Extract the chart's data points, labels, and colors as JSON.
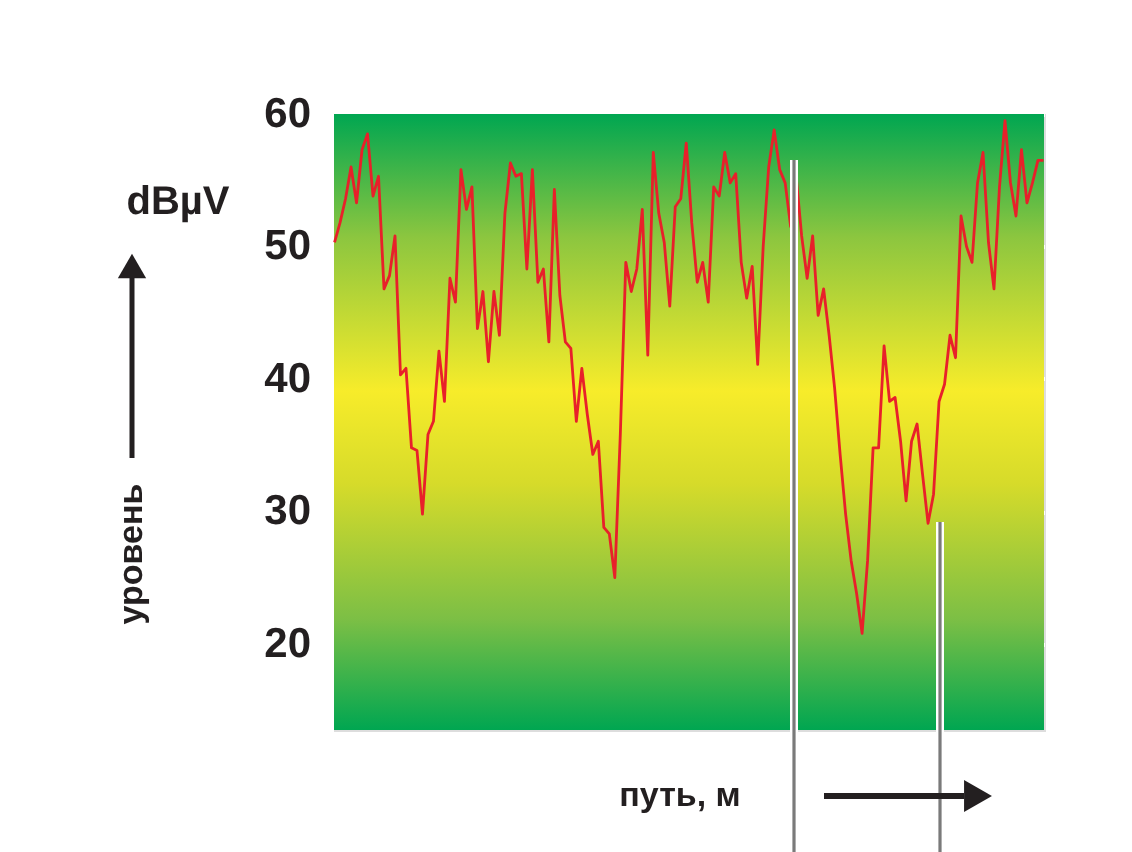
{
  "chart_data": {
    "type": "line",
    "xlabel": "путь, м",
    "ylabel": "уровень",
    "annotations": [
      "dBµV"
    ],
    "categories": [
      null,
      null,
      null,
      null,
      null,
      null,
      null,
      null,
      null,
      null,
      null,
      null,
      null,
      null,
      null,
      null,
      null,
      null,
      null,
      null,
      null,
      null,
      null,
      null,
      null,
      null,
      null,
      null,
      null,
      null,
      null,
      null,
      null,
      null,
      null,
      null,
      null,
      null,
      null,
      null,
      null,
      null,
      null,
      null,
      null,
      null,
      null,
      null,
      null,
      null,
      null,
      null,
      null,
      null,
      null,
      null,
      null,
      null,
      null,
      null,
      null,
      null,
      null,
      null,
      null,
      null,
      null,
      null,
      null,
      null,
      null,
      null,
      null,
      null,
      null,
      null,
      null,
      null,
      null,
      null,
      null,
      null,
      null,
      null,
      null,
      null,
      null,
      null,
      null,
      null,
      null,
      null,
      null,
      null,
      null,
      null,
      null,
      null,
      null,
      null,
      null,
      null,
      null,
      null,
      null,
      null,
      null,
      null,
      null,
      null,
      null,
      null,
      null,
      null,
      null,
      null,
      null,
      null,
      null,
      null,
      null,
      null,
      null,
      null,
      null,
      null,
      null,
      null,
      null,
      null
    ],
    "ylim": [
      13.5,
      60
    ],
    "yticks": [
      20,
      30,
      40,
      50,
      60
    ],
    "grid": "y",
    "tick_labels": "y",
    "marker": "none",
    "line_style": "solid",
    "series": [
      {
        "color": "#e8202a",
        "values": [
          50.3,
          51.8,
          53.6,
          56.0,
          53.3,
          57.3,
          58.5,
          53.8,
          55.3,
          46.8,
          47.8,
          50.8,
          40.3,
          40.8,
          34.8,
          34.6,
          29.8,
          35.8,
          36.8,
          42.1,
          38.3,
          47.6,
          45.8,
          55.8,
          52.8,
          54.5,
          43.8,
          46.6,
          41.3,
          46.6,
          43.3,
          52.5,
          56.3,
          55.3,
          55.5,
          48.3,
          55.8,
          47.3,
          48.3,
          42.8,
          54.3,
          46.3,
          42.8,
          42.3,
          36.8,
          40.8,
          37.3,
          34.3,
          35.3,
          28.8,
          28.3,
          25.0,
          35.8,
          48.8,
          46.6,
          48.3,
          52.8,
          41.8,
          57.1,
          52.5,
          50.3,
          45.5,
          53.0,
          53.6,
          57.8,
          51.8,
          47.3,
          48.8,
          45.8,
          54.5,
          53.8,
          57.1,
          54.8,
          55.5,
          48.8,
          46.1,
          48.5,
          41.1,
          50.0,
          56.0,
          58.8,
          55.8,
          54.8,
          51.5,
          55.3,
          50.8,
          47.6,
          50.8,
          44.8,
          46.8,
          43.3,
          39.3,
          34.3,
          29.8,
          26.3,
          23.8,
          20.8,
          26.3,
          34.8,
          34.8,
          42.5,
          38.3,
          38.6,
          35.3,
          30.8,
          35.3,
          36.6,
          32.8,
          29.1,
          31.3,
          38.3,
          39.6,
          43.3,
          41.6,
          52.3,
          50.0,
          48.8,
          54.8,
          57.1,
          50.3,
          46.8,
          54.5,
          59.5,
          54.8,
          52.3,
          57.3,
          53.3,
          54.8,
          56.5,
          56.5
        ]
      }
    ]
  }
}
